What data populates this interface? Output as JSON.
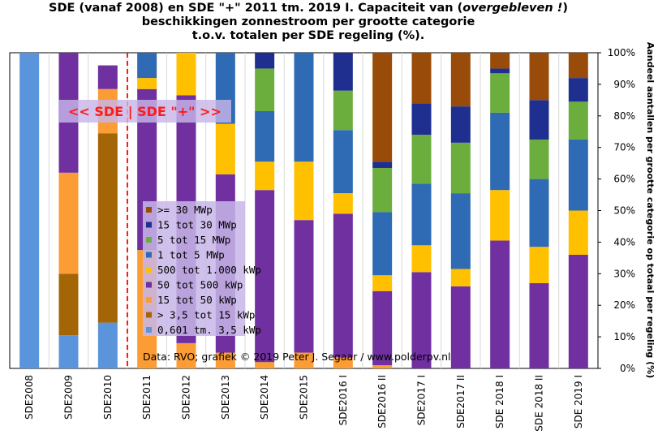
{
  "chart_data": {
    "type": "bar",
    "stacked": true,
    "title": [
      {
        "text": "SDE (vanaf 2008) en SDE \"+\" 2011 tm. 2019 I. Capaciteit van (",
        "italic": false
      },
      {
        "text": "overgebleven !",
        "italic": true
      },
      {
        "text": ")",
        "italic": false
      }
    ],
    "title_line2": "beschikkingen zonnestroom per grootte categorie",
    "title_line3": "t.o.v. totalen per SDE regeling (%).",
    "ylabel": "Aandeel aantallen per grootte categorie op totaal per regeling (%)",
    "ylim": [
      0,
      100
    ],
    "yticks": [
      "0%",
      "10%",
      "20%",
      "30%",
      "40%",
      "50%",
      "60%",
      "70%",
      "80%",
      "90%",
      "100%"
    ],
    "categories": [
      "SDE2008",
      "SDE2009",
      "SDE2010",
      "SDE2011",
      "SDE2012",
      "SDE2013",
      "SDE2014",
      "SDE2015",
      "SDE2016 I",
      "SDE2016 II",
      "SDE2017 I",
      "SDE2017 II",
      "SDE 2018 I",
      "SDE 2018 II",
      "SDE 2019 I"
    ],
    "series": [
      {
        "name": "0,601 tm. 3,5 kWp",
        "color": "#5a95dc",
        "values": [
          100,
          10.5,
          14.5,
          0,
          0,
          0,
          0,
          0,
          0,
          0,
          0,
          0,
          0,
          0,
          0
        ]
      },
      {
        "name": "> 3,5 tot 15 kWp",
        "color": "#a46506",
        "values": [
          0,
          19.5,
          60,
          0,
          0,
          0,
          0,
          0,
          0,
          0,
          0,
          0,
          0,
          0,
          0
        ]
      },
      {
        "name": "15 tot 50 kWp",
        "color": "#fb9c35",
        "values": [
          0,
          32,
          14,
          37.5,
          8,
          5,
          2,
          5,
          3.5,
          1,
          0,
          0,
          0,
          0,
          0
        ]
      },
      {
        "name": "50 tot 500 kWp",
        "color": "#7030a0",
        "values": [
          0,
          38,
          7.5,
          51,
          78.5,
          56.5,
          54.5,
          42,
          45.5,
          23.5,
          30.5,
          26,
          40.5,
          27,
          36
        ]
      },
      {
        "name": "500 tot 1.000 kWp",
        "color": "#ffc000",
        "values": [
          0,
          0,
          0,
          3.5,
          13.5,
          16,
          9,
          18.5,
          6.5,
          5,
          8.5,
          5.5,
          16,
          11.5,
          14
        ]
      },
      {
        "name": "1 tot 5 MWp",
        "color": "#2e6bb4",
        "values": [
          0,
          0,
          0,
          8,
          0,
          22.5,
          16,
          34.5,
          20,
          20,
          19.5,
          24,
          24.5,
          21.5,
          22.5
        ]
      },
      {
        "name": "5 tot 15 MWp",
        "color": "#6cae3e",
        "values": [
          0,
          0,
          0,
          0,
          0,
          0,
          13.5,
          0,
          12.5,
          14,
          15.5,
          16,
          12.5,
          12.5,
          12
        ]
      },
      {
        "name": "15 tot 30 MWp",
        "color": "#1f2f8f",
        "values": [
          0,
          0,
          0,
          0,
          0,
          0,
          5,
          0,
          12,
          2,
          10,
          11.5,
          1.5,
          12.5,
          7.5
        ]
      },
      {
        "name": ">= 30 MWp",
        "color": "#994c0a",
        "values": [
          0,
          0,
          0,
          0,
          0,
          0,
          0,
          0,
          0,
          34.5,
          16,
          17,
          5,
          15,
          8
        ]
      }
    ],
    "legend_order": [
      ">= 30 MWp",
      "15 tot 30 MWp",
      "5 tot 15 MWp",
      "1 tot 5 MWp",
      "500 tot 1.000 kWp",
      "50 tot 500 kWp",
      "15 tot 50 kWp",
      "> 3,5 tot 15 kWp",
      "0,601 tm. 3,5 kWp"
    ],
    "legend_placement": "center-left",
    "grid": "vertical",
    "period_annotation": {
      "left": "<<",
      "label_left": "SDE",
      "separator": "|",
      "label_right": "SDE \"+\"",
      "right": ">>",
      "split_after_category": "SDE2010",
      "color": "#ff1a1a"
    },
    "source": "Data: RVO; grafiek © 2019 Peter J. Segaar / www.polderpv.nl"
  }
}
